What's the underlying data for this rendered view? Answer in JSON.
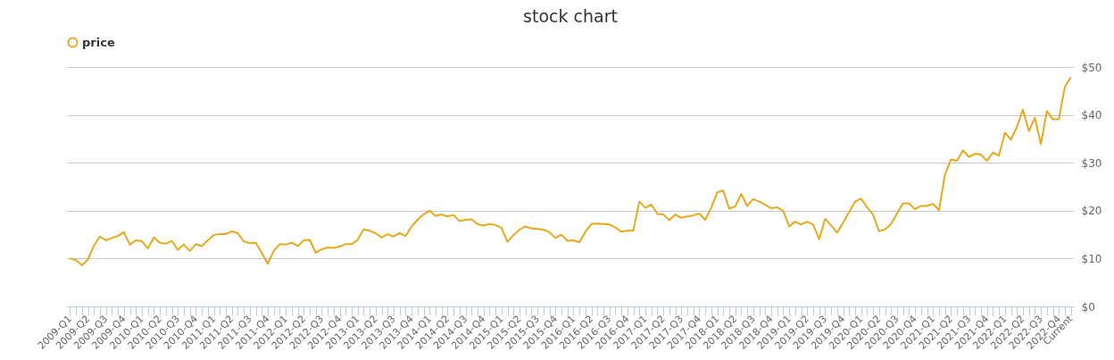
{
  "chart_data": {
    "type": "line",
    "title": "stock chart",
    "categories": [
      "2009-Q1",
      null,
      null,
      "2009-Q2",
      null,
      null,
      "2009-Q3",
      null,
      null,
      "2009-Q4",
      null,
      null,
      "2010-Q1",
      null,
      null,
      "2010-Q2",
      null,
      null,
      "2010-Q3",
      null,
      null,
      "2010-Q4",
      null,
      null,
      "2011-Q1",
      null,
      null,
      "2011-Q2",
      null,
      null,
      "2011-Q3",
      null,
      null,
      "2011-Q4",
      null,
      null,
      "2012-Q1",
      null,
      null,
      "2012-Q2",
      null,
      null,
      "2012-Q3",
      null,
      null,
      "2012-Q4",
      null,
      null,
      "2013-Q1",
      null,
      null,
      "2013-Q2",
      null,
      null,
      "2013-Q3",
      null,
      null,
      "2013-Q4",
      null,
      null,
      "2014-Q1",
      null,
      null,
      "2014-Q2",
      null,
      null,
      "2014-Q3",
      null,
      null,
      "2014-Q4",
      null,
      null,
      "2015-Q1",
      null,
      null,
      "2015-Q2",
      null,
      null,
      "2015-Q3",
      null,
      null,
      "2015-Q4",
      null,
      null,
      "2016-Q1",
      null,
      null,
      "2016-Q2",
      null,
      null,
      "2016-Q3",
      null,
      null,
      "2016-Q4",
      null,
      null,
      "2017-Q1",
      null,
      null,
      "2017-Q2",
      null,
      null,
      "2017-Q3",
      null,
      null,
      "2017-Q4",
      null,
      null,
      "2018-Q1",
      null,
      null,
      "2018-Q2",
      null,
      null,
      "2018-Q3",
      null,
      null,
      "2018-Q4",
      null,
      null,
      "2019-Q1",
      null,
      null,
      "2019-Q2",
      null,
      null,
      "2019-Q3",
      null,
      null,
      "2019-Q4",
      null,
      null,
      "2020-Q1",
      null,
      null,
      "2020-Q2",
      null,
      null,
      "2020-Q3",
      null,
      null,
      "2020-Q4",
      null,
      null,
      "2021-Q1",
      null,
      null,
      "2021-Q2",
      null,
      null,
      "2021-Q3",
      null,
      null,
      "2021-Q4",
      null,
      null,
      "2022-Q1",
      null,
      null,
      "2022-Q2",
      null,
      null,
      "2022-Q3",
      null,
      null,
      "2022-Q4",
      null,
      "Current"
    ],
    "series": [
      {
        "name": "price",
        "color": "#e6a91e",
        "values": [
          10.0,
          9.7,
          8.6,
          9.8,
          12.7,
          14.6,
          13.8,
          14.3,
          14.7,
          15.5,
          12.9,
          13.8,
          13.6,
          12.1,
          14.4,
          13.3,
          13.1,
          13.7,
          11.8,
          12.9,
          11.6,
          13.0,
          12.6,
          13.8,
          14.9,
          15.1,
          15.1,
          15.7,
          15.3,
          13.6,
          13.2,
          13.3,
          11.2,
          8.9,
          11.6,
          13.0,
          12.9,
          13.3,
          12.6,
          13.8,
          13.9,
          11.2,
          11.9,
          12.3,
          12.2,
          12.5,
          13.0,
          13.0,
          13.9,
          16.1,
          15.8,
          15.3,
          14.4,
          15.1,
          14.6,
          15.3,
          14.7,
          16.7,
          18.1,
          19.2,
          20.0,
          18.9,
          19.2,
          18.8,
          19.1,
          17.8,
          18.1,
          18.2,
          17.2,
          16.9,
          17.2,
          17.0,
          16.4,
          13.5,
          14.9,
          16.0,
          16.7,
          16.3,
          16.2,
          16.0,
          15.5,
          14.3,
          15.0,
          13.7,
          13.8,
          13.4,
          15.6,
          17.2,
          17.3,
          17.2,
          17.1,
          16.5,
          15.6,
          15.8,
          15.8,
          21.9,
          20.6,
          21.3,
          19.3,
          19.2,
          18.0,
          19.2,
          18.5,
          18.8,
          19.0,
          19.4,
          18.1,
          20.6,
          23.8,
          24.2,
          20.4,
          20.9,
          23.5,
          21.0,
          22.4,
          21.9,
          21.2,
          20.5,
          20.7,
          20.0,
          16.7,
          17.7,
          17.1,
          17.7,
          17.1,
          14.0,
          18.3,
          16.9,
          15.4,
          17.5,
          19.7,
          21.9,
          22.5,
          20.7,
          19.2,
          15.7,
          16.1,
          17.2,
          19.4,
          21.5,
          21.5,
          20.3,
          21.0,
          21.0,
          21.4,
          20.1,
          27.5,
          30.7,
          30.4,
          32.6,
          31.2,
          31.9,
          31.7,
          30.4,
          32.1,
          31.5,
          36.3,
          34.8,
          37.5,
          41.1,
          36.6,
          39.4,
          33.9,
          40.8,
          39.1,
          39.1,
          45.8,
          47.9
        ]
      }
    ],
    "ylim": [
      0,
      50
    ],
    "yticks": [
      {
        "value": 0,
        "label": "$0"
      },
      {
        "value": 10,
        "label": "$10"
      },
      {
        "value": 20,
        "label": "$20"
      },
      {
        "value": 30,
        "label": "$30"
      },
      {
        "value": 40,
        "label": "$40"
      },
      {
        "value": 50,
        "label": "$50"
      }
    ],
    "grid": "y",
    "legend": "top"
  }
}
